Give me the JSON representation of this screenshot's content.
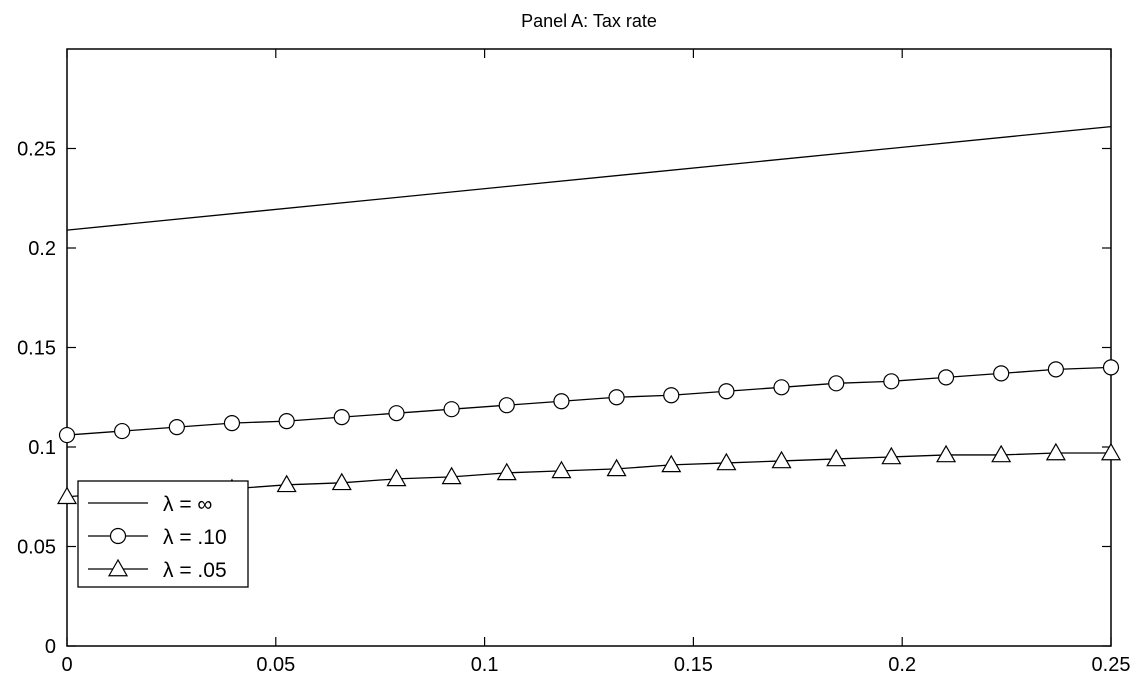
{
  "chart_data": {
    "type": "line",
    "title": "Panel A: Tax rate",
    "xlabel": "",
    "ylabel": "",
    "xlim": [
      0,
      0.25
    ],
    "ylim": [
      0,
      0.3
    ],
    "x_ticks": [
      "0",
      "0.05",
      "0.1",
      "0.15",
      "0.2",
      "0.25"
    ],
    "y_ticks": [
      "0",
      "0.05",
      "0.1",
      "0.15",
      "0.2",
      "0.25"
    ],
    "grid": false,
    "legend_position": "bottom-left",
    "series": [
      {
        "name": "λ = ∞",
        "marker": "none",
        "x": [
          0,
          0.25
        ],
        "values": [
          0.209,
          0.261
        ]
      },
      {
        "name": "λ = .10",
        "marker": "circle",
        "x": [
          0,
          0.0132,
          0.0263,
          0.0395,
          0.0526,
          0.0658,
          0.0789,
          0.0921,
          0.1053,
          0.1184,
          0.1316,
          0.1447,
          0.1579,
          0.1711,
          0.1842,
          0.1974,
          0.2105,
          0.2237,
          0.2368,
          0.25
        ],
        "values": [
          0.106,
          0.108,
          0.11,
          0.112,
          0.113,
          0.115,
          0.117,
          0.119,
          0.121,
          0.123,
          0.125,
          0.126,
          0.128,
          0.13,
          0.132,
          0.133,
          0.135,
          0.137,
          0.139,
          0.14
        ]
      },
      {
        "name": "λ = .05",
        "marker": "triangle",
        "x": [
          0,
          0.0132,
          0.0263,
          0.0395,
          0.0526,
          0.0658,
          0.0789,
          0.0921,
          0.1053,
          0.1184,
          0.1316,
          0.1447,
          0.1579,
          0.1711,
          0.1842,
          0.1974,
          0.2105,
          0.2237,
          0.2368,
          0.25
        ],
        "values": [
          0.075,
          0.077,
          0.078,
          0.079,
          0.081,
          0.082,
          0.084,
          0.085,
          0.087,
          0.088,
          0.089,
          0.091,
          0.092,
          0.093,
          0.094,
          0.095,
          0.096,
          0.096,
          0.097,
          0.097
        ]
      }
    ]
  }
}
